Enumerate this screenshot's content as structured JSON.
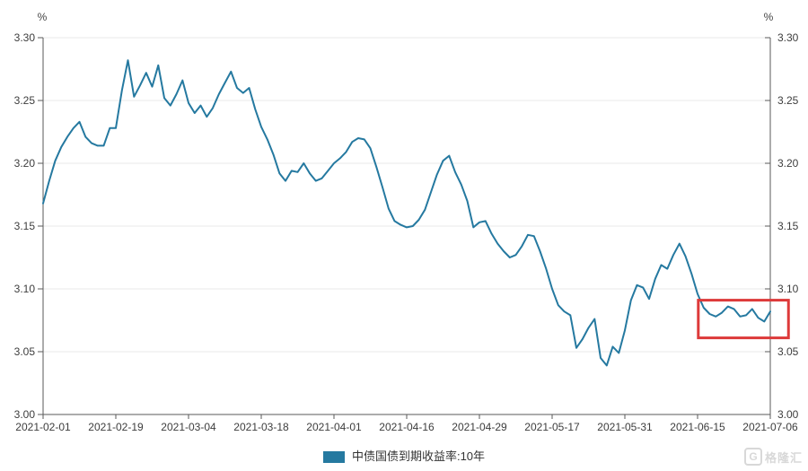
{
  "chart_data": {
    "type": "line",
    "title": "",
    "legend_position": "bottom-center",
    "grid": "horizontal",
    "x_tick_labels": [
      "2021-02-01",
      "2021-02-19",
      "2021-03-04",
      "2021-03-18",
      "2021-04-01",
      "2021-04-16",
      "2021-04-29",
      "2021-05-17",
      "2021-05-31",
      "2021-06-15",
      "2021-07-06"
    ],
    "y_axis": {
      "unit": "%",
      "min": 3.0,
      "max": 3.3,
      "tick_step": 0.05,
      "tick_labels": [
        "3.30",
        "3.25",
        "3.20",
        "3.15",
        "3.10",
        "3.05",
        "3.00"
      ]
    },
    "series": [
      {
        "name": "中债国债到期收益率:10年",
        "color": "#2579a0",
        "values": [
          3.168,
          3.186,
          3.202,
          3.213,
          3.221,
          3.228,
          3.233,
          3.221,
          3.216,
          3.214,
          3.214,
          3.228,
          3.228,
          3.258,
          3.282,
          3.253,
          3.262,
          3.272,
          3.261,
          3.278,
          3.252,
          3.246,
          3.255,
          3.266,
          3.248,
          3.24,
          3.246,
          3.237,
          3.244,
          3.255,
          3.264,
          3.273,
          3.26,
          3.256,
          3.26,
          3.243,
          3.229,
          3.219,
          3.207,
          3.192,
          3.186,
          3.194,
          3.193,
          3.2,
          3.192,
          3.186,
          3.188,
          3.194,
          3.2,
          3.204,
          3.209,
          3.217,
          3.22,
          3.219,
          3.212,
          3.197,
          3.181,
          3.164,
          3.154,
          3.151,
          3.149,
          3.15,
          3.155,
          3.163,
          3.177,
          3.191,
          3.202,
          3.206,
          3.193,
          3.183,
          3.17,
          3.149,
          3.153,
          3.154,
          3.144,
          3.136,
          3.13,
          3.125,
          3.127,
          3.134,
          3.143,
          3.142,
          3.13,
          3.116,
          3.1,
          3.087,
          3.082,
          3.079,
          3.053,
          3.06,
          3.069,
          3.076,
          3.045,
          3.039,
          3.054,
          3.049,
          3.067,
          3.091,
          3.103,
          3.101,
          3.092,
          3.108,
          3.119,
          3.116,
          3.127,
          3.136,
          3.126,
          3.112,
          3.096,
          3.085,
          3.08,
          3.078,
          3.081,
          3.086,
          3.084,
          3.078,
          3.079,
          3.084,
          3.077,
          3.074,
          3.082
        ]
      }
    ],
    "annotation_box": {
      "description": "red highlight rectangle over the final late-June to early-July stretch of the line",
      "color": "#dd3a3a",
      "x_frac_range": [
        0.901,
        1.025
      ],
      "value_range": [
        3.061,
        3.091
      ]
    }
  },
  "legend": {
    "swatch_color": "#2579a0",
    "label": "中债国债到期收益率:10年"
  },
  "watermark": {
    "logo": "G",
    "text": "格隆汇"
  },
  "colors": {
    "axis": "#5a5a5a",
    "grid": "#eaeaea",
    "tick_text": "#3d3d3d",
    "background": "#ffffff"
  }
}
